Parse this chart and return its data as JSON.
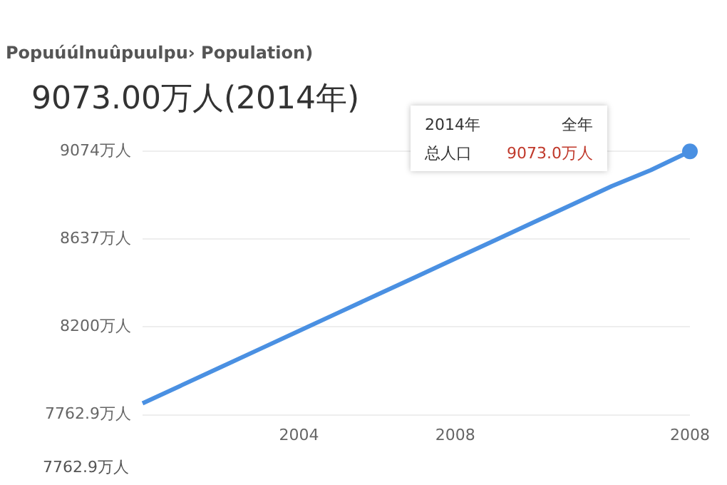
{
  "chart_data": {
    "type": "line",
    "title": "9073.00万人(2014年)",
    "subtitle": "Popuúúlnuûpuulpu› Population)",
    "categories": [
      null,
      null,
      null,
      null,
      "2004",
      null,
      null,
      null,
      "2008",
      null,
      null,
      null,
      null,
      null,
      "2008"
    ],
    "series": [
      {
        "color": "#4a90e2",
        "marker": "none",
        "values": [
          7820,
          7910,
          8000,
          8090,
          8180,
          8270,
          8360,
          8450,
          8540,
          8630,
          8720,
          8810,
          8900,
          8980,
          9073
        ]
      },
      {
        "type": "scatter",
        "color": "#4a90e2",
        "marker": "circle",
        "values": [
          null,
          null,
          null,
          null,
          null,
          null,
          null,
          null,
          null,
          null,
          null,
          null,
          null,
          null,
          9073
        ]
      }
    ],
    "ylim": [
      7762.9,
      9074
    ],
    "yticks": [
      {
        "value": 7762.9,
        "label": "7762.9万人"
      },
      {
        "value": 8200,
        "label": "8200万人"
      },
      {
        "value": 8637,
        "label": "8637万人"
      },
      {
        "value": 9074,
        "label": "9074万人"
      }
    ],
    "grid": "y",
    "legend": false,
    "line_style": "solid",
    "annotations": [
      "2014年",
      "全年",
      "总人口",
      "9073.0万人",
      "7762.9万人"
    ]
  }
}
